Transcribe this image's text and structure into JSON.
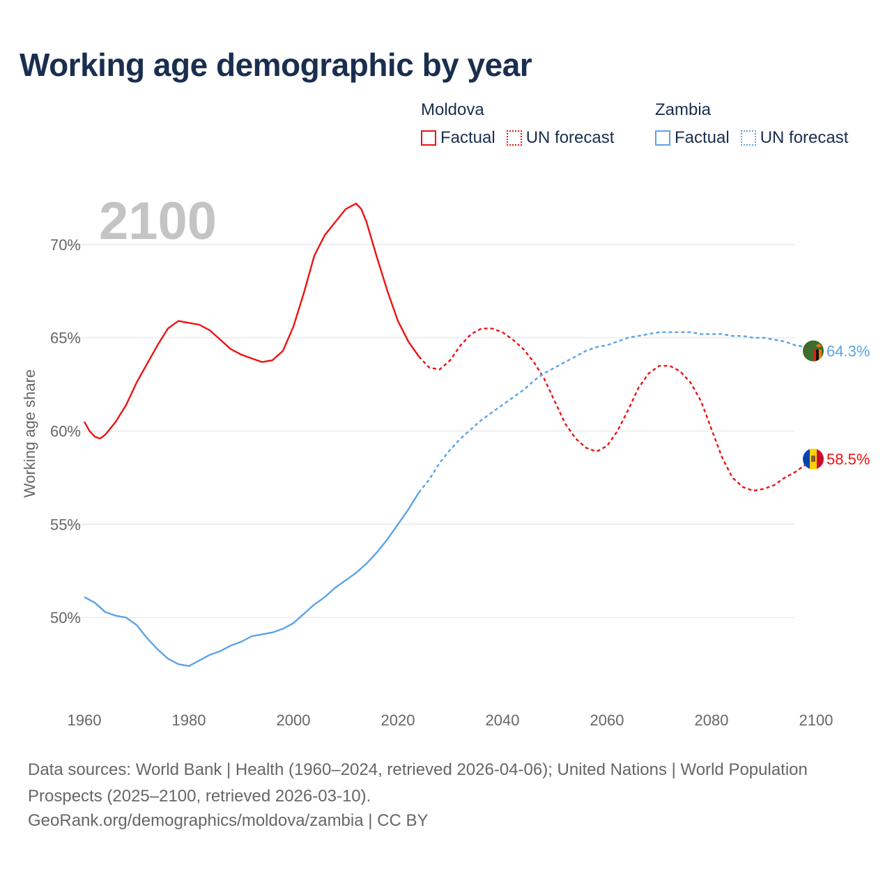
{
  "title": "Working age demographic by year",
  "legend": [
    {
      "group": "Moldova",
      "color": "#ee1111",
      "factual_label": "Factual",
      "forecast_label": "UN forecast"
    },
    {
      "group": "Zambia",
      "color": "#5ba3e6",
      "factual_label": "Factual",
      "forecast_label": "UN forecast"
    }
  ],
  "footer": {
    "sources": "Data sources: World Bank | Health (1960–2024, retrieved 2026-04-06); United Nations | World Population Prospects (2025–2100, retrieved 2026-03-10).",
    "attribution": "GeoRank.org/demographics/moldova/zambia | CC BY"
  },
  "chart_data": {
    "type": "line",
    "year_label": "2100",
    "ylabel": "Working age share",
    "xlim": [
      1960,
      2100
    ],
    "ylim": [
      45.3,
      72.5
    ],
    "x_ticks": [
      1960,
      1980,
      2000,
      2020,
      2040,
      2060,
      2080,
      2100
    ],
    "x_tick_labels": [
      "1960",
      "1980",
      "2000",
      "2020",
      "2040",
      "2060",
      "2080",
      "2100"
    ],
    "y_ticks": [
      50,
      55,
      60,
      65,
      70
    ],
    "y_tick_labels": [
      "50%",
      "55%",
      "60%",
      "65%",
      "70%"
    ],
    "forecast_start": 2024,
    "series": [
      {
        "name": "Moldova",
        "color": "#ee1111",
        "end_label": "58.5%",
        "flag": "moldova-flag",
        "points": [
          [
            1960,
            60.5
          ],
          [
            1961,
            60.0
          ],
          [
            1962,
            59.7
          ],
          [
            1963,
            59.6
          ],
          [
            1964,
            59.8
          ],
          [
            1966,
            60.5
          ],
          [
            1968,
            61.4
          ],
          [
            1970,
            62.6
          ],
          [
            1972,
            63.6
          ],
          [
            1974,
            64.6
          ],
          [
            1976,
            65.5
          ],
          [
            1978,
            65.9
          ],
          [
            1980,
            65.8
          ],
          [
            1982,
            65.7
          ],
          [
            1984,
            65.4
          ],
          [
            1986,
            64.9
          ],
          [
            1988,
            64.4
          ],
          [
            1990,
            64.1
          ],
          [
            1992,
            63.9
          ],
          [
            1994,
            63.7
          ],
          [
            1996,
            63.8
          ],
          [
            1998,
            64.3
          ],
          [
            2000,
            65.6
          ],
          [
            2002,
            67.4
          ],
          [
            2004,
            69.4
          ],
          [
            2006,
            70.5
          ],
          [
            2008,
            71.2
          ],
          [
            2010,
            71.9
          ],
          [
            2012,
            72.2
          ],
          [
            2013,
            71.9
          ],
          [
            2014,
            71.2
          ],
          [
            2016,
            69.3
          ],
          [
            2018,
            67.5
          ],
          [
            2020,
            65.9
          ],
          [
            2022,
            64.8
          ],
          [
            2024,
            64.0
          ],
          [
            2026,
            63.4
          ],
          [
            2028,
            63.3
          ],
          [
            2030,
            63.8
          ],
          [
            2032,
            64.6
          ],
          [
            2034,
            65.2
          ],
          [
            2036,
            65.5
          ],
          [
            2038,
            65.5
          ],
          [
            2040,
            65.3
          ],
          [
            2042,
            64.9
          ],
          [
            2044,
            64.4
          ],
          [
            2046,
            63.7
          ],
          [
            2048,
            62.8
          ],
          [
            2050,
            61.6
          ],
          [
            2052,
            60.4
          ],
          [
            2054,
            59.6
          ],
          [
            2056,
            59.1
          ],
          [
            2058,
            58.9
          ],
          [
            2060,
            59.2
          ],
          [
            2062,
            60.0
          ],
          [
            2064,
            61.1
          ],
          [
            2066,
            62.3
          ],
          [
            2068,
            63.1
          ],
          [
            2070,
            63.5
          ],
          [
            2072,
            63.5
          ],
          [
            2074,
            63.2
          ],
          [
            2076,
            62.6
          ],
          [
            2078,
            61.6
          ],
          [
            2080,
            60.1
          ],
          [
            2082,
            58.6
          ],
          [
            2084,
            57.5
          ],
          [
            2086,
            57.0
          ],
          [
            2088,
            56.8
          ],
          [
            2090,
            56.9
          ],
          [
            2092,
            57.1
          ],
          [
            2094,
            57.5
          ],
          [
            2096,
            57.8
          ],
          [
            2098,
            58.2
          ],
          [
            2100,
            58.5
          ]
        ]
      },
      {
        "name": "Zambia",
        "color": "#5ba3e6",
        "end_label": "64.3%",
        "flag": "zambia-flag",
        "points": [
          [
            1960,
            51.1
          ],
          [
            1962,
            50.8
          ],
          [
            1964,
            50.3
          ],
          [
            1966,
            50.1
          ],
          [
            1968,
            50.0
          ],
          [
            1970,
            49.6
          ],
          [
            1972,
            48.9
          ],
          [
            1974,
            48.3
          ],
          [
            1976,
            47.8
          ],
          [
            1978,
            47.5
          ],
          [
            1980,
            47.4
          ],
          [
            1982,
            47.7
          ],
          [
            1984,
            48.0
          ],
          [
            1986,
            48.2
          ],
          [
            1988,
            48.5
          ],
          [
            1990,
            48.7
          ],
          [
            1992,
            49.0
          ],
          [
            1994,
            49.1
          ],
          [
            1996,
            49.2
          ],
          [
            1998,
            49.4
          ],
          [
            2000,
            49.7
          ],
          [
            2002,
            50.2
          ],
          [
            2004,
            50.7
          ],
          [
            2006,
            51.1
          ],
          [
            2008,
            51.6
          ],
          [
            2010,
            52.0
          ],
          [
            2012,
            52.4
          ],
          [
            2014,
            52.9
          ],
          [
            2016,
            53.5
          ],
          [
            2018,
            54.2
          ],
          [
            2020,
            55.0
          ],
          [
            2022,
            55.8
          ],
          [
            2024,
            56.7
          ],
          [
            2026,
            57.4
          ],
          [
            2028,
            58.3
          ],
          [
            2030,
            59.0
          ],
          [
            2032,
            59.6
          ],
          [
            2034,
            60.1
          ],
          [
            2036,
            60.6
          ],
          [
            2038,
            61.0
          ],
          [
            2040,
            61.4
          ],
          [
            2042,
            61.8
          ],
          [
            2044,
            62.2
          ],
          [
            2046,
            62.7
          ],
          [
            2048,
            63.1
          ],
          [
            2050,
            63.4
          ],
          [
            2052,
            63.7
          ],
          [
            2054,
            64.0
          ],
          [
            2056,
            64.3
          ],
          [
            2058,
            64.5
          ],
          [
            2060,
            64.6
          ],
          [
            2062,
            64.8
          ],
          [
            2064,
            65.0
          ],
          [
            2066,
            65.1
          ],
          [
            2068,
            65.2
          ],
          [
            2070,
            65.3
          ],
          [
            2072,
            65.3
          ],
          [
            2074,
            65.3
          ],
          [
            2076,
            65.3
          ],
          [
            2078,
            65.2
          ],
          [
            2080,
            65.2
          ],
          [
            2082,
            65.2
          ],
          [
            2084,
            65.1
          ],
          [
            2086,
            65.1
          ],
          [
            2088,
            65.0
          ],
          [
            2090,
            65.0
          ],
          [
            2092,
            64.9
          ],
          [
            2094,
            64.8
          ],
          [
            2096,
            64.6
          ],
          [
            2098,
            64.5
          ],
          [
            2100,
            64.3
          ]
        ]
      }
    ]
  }
}
